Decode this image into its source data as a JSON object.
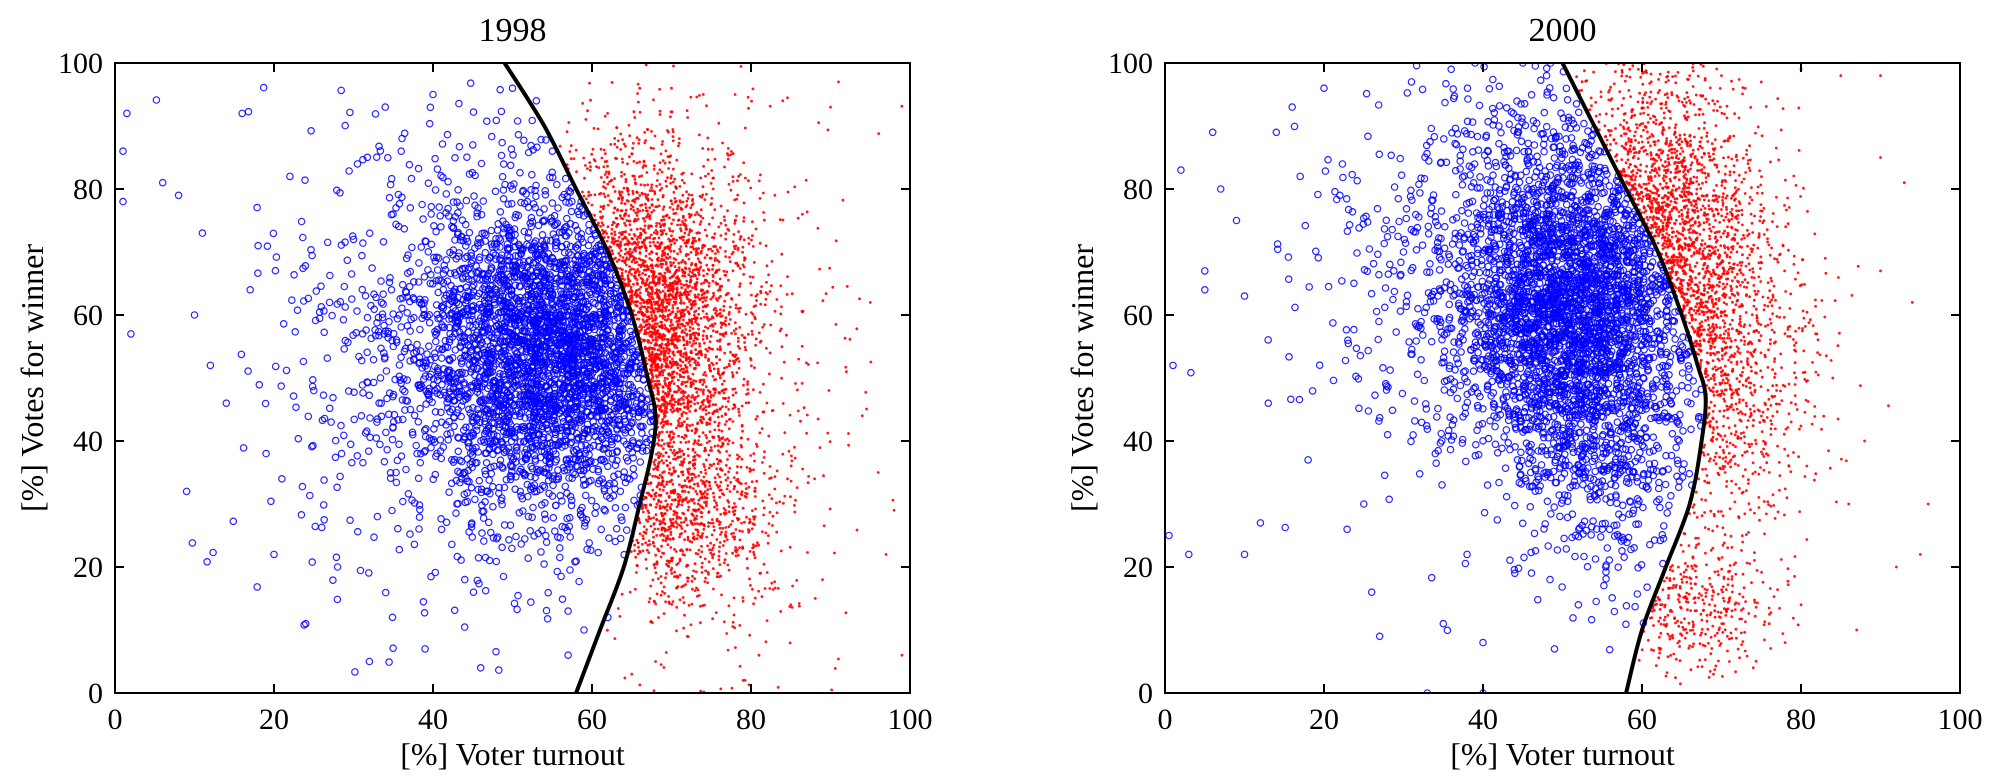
{
  "chart_data": [
    {
      "type": "scatter",
      "title": "1998",
      "xlabel": "[%] Voter turnout",
      "ylabel": "[%] Votes for winner",
      "xlim": [
        0,
        100
      ],
      "ylim": [
        0,
        100
      ],
      "xticks": [
        "0",
        "20",
        "40",
        "60",
        "80",
        "100"
      ],
      "yticks": [
        "0",
        "20",
        "40",
        "60",
        "80",
        "100"
      ],
      "grid": false,
      "series": [
        {
          "color": "#0000ff",
          "marker": "circle",
          "points": [
            [
              1,
              78
            ],
            [
              1,
              86
            ],
            [
              1.5,
              92
            ],
            [
              2,
              57
            ],
            [
              6,
              81
            ],
            [
              8,
              79
            ],
            [
              9,
              32
            ],
            [
              10,
              60
            ],
            [
              11,
              73
            ],
            [
              12,
              52
            ],
            [
              14,
              46
            ],
            [
              16,
              92
            ],
            [
              17,
              64
            ],
            [
              18,
              71
            ],
            [
              19,
              38
            ],
            [
              20,
              22
            ],
            [
              21,
              34
            ],
            [
              22,
              82
            ],
            [
              24,
              11
            ],
            [
              25,
              48
            ],
            [
              27,
              62
            ],
            [
              28,
              20
            ],
            [
              30,
              72
            ],
            [
              31,
              44
            ],
            [
              32,
              5
            ],
            [
              33,
              28
            ],
            [
              34,
              93
            ],
            [
              35,
              55
            ],
            [
              36,
              86
            ],
            [
              38,
              38
            ],
            [
              39,
              7
            ],
            [
              40,
              95
            ],
            [
              41,
              74
            ],
            [
              42,
              50
            ],
            [
              43,
              30
            ],
            [
              44,
              18
            ],
            [
              45,
              87
            ],
            [
              46,
              4
            ],
            [
              47,
              42
            ],
            [
              48,
              64
            ],
            [
              50,
              80
            ],
            [
              52,
              28
            ],
            [
              54,
              58
            ],
            [
              56,
              46
            ],
            [
              57,
              13
            ],
            [
              58,
              36
            ],
            [
              60,
              68
            ],
            [
              62,
              52
            ],
            [
              64,
              40
            ],
            [
              66,
              30
            ],
            [
              50,
              96
            ],
            [
              53,
              94
            ],
            [
              55,
              86
            ],
            [
              57,
              6
            ],
            [
              59,
              10
            ],
            [
              62,
              12
            ]
          ],
          "cloud": [
            {
              "cx": 55,
              "cy": 54,
              "sx": 8,
              "sy": 12,
              "n": 2400
            },
            {
              "cx": 50,
              "cy": 55,
              "sx": 13,
              "sy": 17,
              "n": 900
            },
            {
              "cx": 44,
              "cy": 52,
              "sx": 15,
              "sy": 20,
              "n": 260
            }
          ],
          "boundary_side": "left"
        },
        {
          "color": "#ff0000",
          "marker": "dot",
          "points": [
            [
              66,
              96
            ],
            [
              70,
              96
            ],
            [
              74,
              95
            ],
            [
              78,
              95
            ],
            [
              84,
              94
            ],
            [
              90,
              93
            ],
            [
              94,
              44
            ],
            [
              95,
              62
            ],
            [
              96,
              35
            ],
            [
              97,
              22
            ],
            [
              98,
              29
            ],
            [
              99,
              6
            ],
            [
              86,
              53
            ],
            [
              88,
              34
            ],
            [
              89,
              18
            ],
            [
              92,
              51
            ],
            [
              83,
              79
            ],
            [
              85,
              14
            ],
            [
              81,
              6
            ],
            [
              79,
              2
            ],
            [
              72,
              9
            ],
            [
              68,
              5
            ],
            [
              65,
              3
            ],
            [
              91,
              97
            ]
          ],
          "cloud": [
            {
              "cx": 66,
              "cy": 58,
              "sx": 6,
              "sy": 13,
              "n": 2300
            },
            {
              "cx": 72,
              "cy": 28,
              "sx": 6,
              "sy": 7,
              "n": 650
            },
            {
              "cx": 72,
              "cy": 48,
              "sx": 9,
              "sy": 22,
              "n": 700
            }
          ],
          "boundary_side": "right"
        }
      ],
      "boundary_curve": {
        "color": "#000000",
        "points": [
          [
            49,
            100
          ],
          [
            54,
            90
          ],
          [
            58,
            80
          ],
          [
            62,
            70
          ],
          [
            65,
            60
          ],
          [
            67,
            50
          ],
          [
            68,
            44
          ],
          [
            67.5,
            38
          ],
          [
            66,
            30
          ],
          [
            64,
            20
          ],
          [
            61,
            10
          ],
          [
            58,
            0
          ]
        ]
      }
    },
    {
      "type": "scatter",
      "title": "2000",
      "xlabel": "[%] Voter turnout",
      "ylabel": "[%] Votes for winner",
      "xlim": [
        0,
        100
      ],
      "ylim": [
        0,
        100
      ],
      "xticks": [
        "0",
        "20",
        "40",
        "60",
        "80",
        "100"
      ],
      "yticks": [
        "0",
        "20",
        "40",
        "60",
        "80",
        "100"
      ],
      "grid": false,
      "series": [
        {
          "color": "#0000ff",
          "marker": "circle",
          "points": [
            [
              0.5,
              25
            ],
            [
              1,
              52
            ],
            [
              2,
              83
            ],
            [
              3,
              22
            ],
            [
              5,
              67
            ],
            [
              5,
              64
            ],
            [
              6,
              89
            ],
            [
              7,
              80
            ],
            [
              9,
              75
            ],
            [
              10,
              22
            ],
            [
              10,
              63
            ],
            [
              12,
              27
            ],
            [
              13,
              46
            ],
            [
              14,
              89
            ],
            [
              16,
              93
            ],
            [
              17,
              82
            ],
            [
              18,
              37
            ],
            [
              20,
              96
            ],
            [
              22,
              79
            ],
            [
              23,
              56
            ],
            [
              25,
              30
            ],
            [
              26,
              16
            ],
            [
              27,
              9
            ],
            [
              28,
              41
            ],
            [
              30,
              70
            ],
            [
              31,
              97
            ],
            [
              33,
              0
            ],
            [
              34,
              38
            ],
            [
              35,
              11
            ],
            [
              36,
              99
            ],
            [
              38,
              22
            ],
            [
              39,
              100
            ],
            [
              40,
              8
            ],
            [
              40,
              0
            ],
            [
              41,
              60
            ],
            [
              42,
              90
            ],
            [
              44,
              19
            ],
            [
              45,
              100
            ],
            [
              46,
              35
            ],
            [
              48,
              98
            ],
            [
              49,
              7
            ],
            [
              52,
              14
            ]
          ],
          "cloud": [
            {
              "cx": 51,
              "cy": 63,
              "sx": 7,
              "sy": 12,
              "n": 2100
            },
            {
              "cx": 47,
              "cy": 66,
              "sx": 10,
              "sy": 15,
              "n": 900
            },
            {
              "cx": 55,
              "cy": 40,
              "sx": 6,
              "sy": 12,
              "n": 600
            },
            {
              "cx": 40,
              "cy": 62,
              "sx": 12,
              "sy": 20,
              "n": 240
            }
          ],
          "boundary_side": "left"
        },
        {
          "color": "#ff0000",
          "marker": "dot",
          "points": [
            [
              66,
              98
            ],
            [
              70,
              98
            ],
            [
              75,
              97
            ],
            [
              80,
              99
            ],
            [
              85,
              98
            ],
            [
              90,
              98
            ],
            [
              94,
              62
            ],
            [
              95,
              22
            ],
            [
              92,
              20
            ],
            [
              90,
              67
            ],
            [
              88,
              40
            ],
            [
              86,
              30
            ],
            [
              84,
              50
            ],
            [
              82,
              57
            ],
            [
              80,
              14
            ],
            [
              78,
              8
            ],
            [
              76,
              11
            ],
            [
              74,
              4
            ],
            [
              71,
              5
            ],
            [
              69,
              3
            ],
            [
              90,
              85
            ],
            [
              93,
              81
            ],
            [
              96,
              30
            ],
            [
              87,
              10
            ]
          ],
          "cloud": [
            {
              "cx": 62,
              "cy": 72,
              "sx": 6,
              "sy": 14,
              "n": 1500
            },
            {
              "cx": 68,
              "cy": 52,
              "sx": 7,
              "sy": 15,
              "n": 900
            },
            {
              "cx": 66,
              "cy": 14,
              "sx": 5,
              "sy": 5,
              "n": 320
            }
          ],
          "boundary_side": "right"
        }
      ],
      "boundary_curve": {
        "color": "#000000",
        "points": [
          [
            50,
            100
          ],
          [
            54,
            90
          ],
          [
            58,
            80
          ],
          [
            62,
            70
          ],
          [
            65,
            60
          ],
          [
            67,
            52
          ],
          [
            68,
            47
          ],
          [
            67.5,
            40
          ],
          [
            66,
            30
          ],
          [
            63,
            20
          ],
          [
            60,
            10
          ],
          [
            58,
            0
          ]
        ]
      }
    }
  ]
}
